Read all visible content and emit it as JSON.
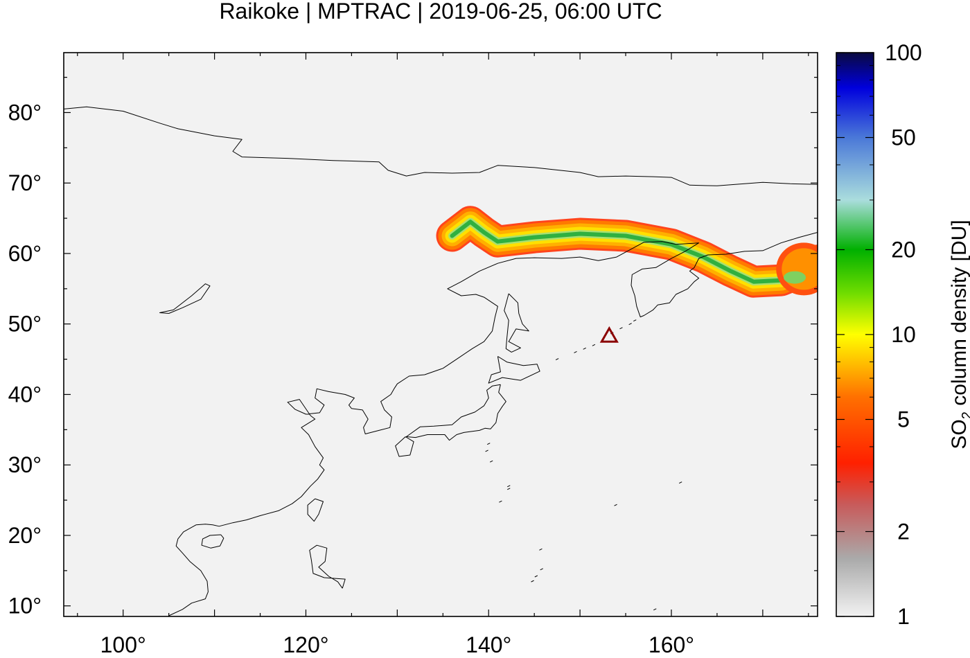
{
  "title": "Raikoke | MPTRAC | 2019-06-25, 06:00 UTC",
  "map": {
    "lon_range": [
      93.5,
      176
    ],
    "lat_range": [
      8.5,
      88.5
    ],
    "lon_ticks": [
      {
        "value": 100,
        "label": "100°"
      },
      {
        "value": 120,
        "label": "120°"
      },
      {
        "value": 140,
        "label": "140°"
      },
      {
        "value": 160,
        "label": "160°"
      }
    ],
    "lat_ticks": [
      {
        "value": 10,
        "label": "10°"
      },
      {
        "value": 20,
        "label": "20°"
      },
      {
        "value": 30,
        "label": "30°"
      },
      {
        "value": 40,
        "label": "40°"
      },
      {
        "value": 50,
        "label": "50°"
      },
      {
        "value": 60,
        "label": "60°"
      },
      {
        "value": 70,
        "label": "70°"
      },
      {
        "value": 80,
        "label": "80°"
      }
    ],
    "background_color": "#f2f2f2",
    "volcano": {
      "name": "Raikoke",
      "lon": 153.2,
      "lat": 48.3,
      "marker": "triangle-icon",
      "color": "#8b0000"
    },
    "plume_path": [
      [
        136.0,
        62.5
      ],
      [
        138.0,
        64.5
      ],
      [
        139.5,
        63.0
      ],
      [
        141.0,
        61.7
      ],
      [
        145.0,
        62.3
      ],
      [
        150.0,
        62.8
      ],
      [
        155.0,
        62.5
      ],
      [
        160.0,
        61.3
      ],
      [
        163.5,
        59.5
      ],
      [
        166.5,
        57.5
      ],
      [
        169.0,
        56.0
      ],
      [
        172.0,
        56.2
      ],
      [
        174.5,
        57.5
      ],
      [
        176.0,
        59.0
      ]
    ],
    "coastlines": [
      [
        [
          93.5,
          80.5
        ],
        [
          96,
          80.8
        ],
        [
          100,
          80.2
        ],
        [
          104,
          78.5
        ],
        [
          106,
          77.7
        ],
        [
          110,
          76.7
        ],
        [
          113,
          76.2
        ],
        [
          112,
          74.5
        ],
        [
          113,
          73.7
        ],
        [
          118,
          73.5
        ],
        [
          123,
          73.2
        ],
        [
          128,
          73.0
        ],
        [
          129,
          71.8
        ],
        [
          131,
          71.0
        ],
        [
          133,
          71.5
        ],
        [
          136,
          71.4
        ],
        [
          139,
          71.5
        ],
        [
          141,
          72.5
        ],
        [
          145,
          72.2
        ],
        [
          150,
          71.5
        ],
        [
          152,
          70.9
        ],
        [
          155,
          71.0
        ],
        [
          158,
          70.9
        ],
        [
          160,
          70.8
        ],
        [
          162,
          69.7
        ],
        [
          165,
          69.6
        ],
        [
          168,
          69.9
        ],
        [
          170,
          70.1
        ],
        [
          173,
          69.9
        ],
        [
          176,
          69.8
        ]
      ],
      [
        [
          176,
          63.0
        ],
        [
          174,
          62.3
        ],
        [
          172,
          61.5
        ],
        [
          170,
          60.4
        ],
        [
          168,
          60.3
        ],
        [
          166,
          59.9
        ],
        [
          164,
          59.8
        ],
        [
          163,
          59.3
        ],
        [
          162.5,
          58.0
        ],
        [
          162,
          57.5
        ],
        [
          163,
          56.5
        ],
        [
          162.5,
          56.0
        ],
        [
          161.8,
          55.0
        ],
        [
          160.5,
          54.2
        ],
        [
          159.8,
          53.0
        ],
        [
          158.5,
          52.7
        ],
        [
          158.0,
          52.0
        ],
        [
          157.0,
          51.2
        ],
        [
          156.6,
          51.0
        ],
        [
          156.2,
          52.5
        ],
        [
          156.0,
          54.0
        ],
        [
          155.6,
          55.5
        ],
        [
          155.7,
          57.0
        ],
        [
          156.8,
          57.8
        ],
        [
          158.3,
          58.0
        ],
        [
          160.0,
          59.3
        ],
        [
          161.5,
          60.3
        ],
        [
          163.0,
          61.5
        ],
        [
          160.5,
          61.3
        ],
        [
          159.0,
          61.7
        ],
        [
          157.0,
          61.6
        ],
        [
          154.0,
          59.5
        ],
        [
          152.0,
          59.0
        ],
        [
          150.0,
          59.5
        ],
        [
          148.0,
          59.3
        ],
        [
          145.0,
          59.4
        ],
        [
          143.0,
          59.3
        ],
        [
          141.0,
          58.6
        ],
        [
          139.0,
          57.5
        ],
        [
          137.0,
          56.0
        ],
        [
          135.5,
          55.0
        ],
        [
          137.0,
          54.0
        ],
        [
          138.6,
          54.2
        ],
        [
          139.5,
          53.8
        ],
        [
          141.0,
          52.5
        ],
        [
          140.7,
          51.0
        ],
        [
          140.4,
          49.0
        ],
        [
          139.5,
          47.5
        ],
        [
          138.2,
          46.5
        ],
        [
          136.5,
          45.0
        ],
        [
          135.0,
          43.7
        ],
        [
          133.0,
          42.8
        ],
        [
          131.3,
          42.6
        ],
        [
          130.0,
          41.5
        ],
        [
          129.7,
          40.9
        ],
        [
          129.3,
          40.0
        ],
        [
          128.2,
          39.0
        ],
        [
          128.6,
          37.8
        ],
        [
          129.4,
          36.8
        ],
        [
          129.2,
          35.3
        ],
        [
          128.0,
          34.9
        ],
        [
          126.5,
          34.4
        ],
        [
          126.3,
          35.3
        ],
        [
          126.8,
          36.5
        ],
        [
          126.2,
          37.8
        ],
        [
          125.0,
          38.0
        ],
        [
          124.7,
          38.5
        ],
        [
          125.3,
          39.5
        ],
        [
          124.3,
          40.0
        ],
        [
          122.5,
          40.4
        ],
        [
          121.2,
          40.8
        ],
        [
          121.0,
          39.5
        ],
        [
          122.0,
          38.5
        ],
        [
          121.5,
          37.4
        ],
        [
          120.0,
          37.2
        ],
        [
          118.8,
          37.9
        ],
        [
          118.0,
          38.9
        ],
        [
          119.3,
          39.3
        ],
        [
          120.5,
          37.0
        ],
        [
          121.0,
          36.5
        ],
        [
          119.5,
          35.3
        ],
        [
          120.3,
          34.3
        ],
        [
          121.0,
          32.6
        ],
        [
          121.9,
          31.0
        ],
        [
          121.5,
          30.0
        ],
        [
          122.0,
          29.3
        ],
        [
          121.3,
          28.0
        ],
        [
          120.5,
          27.0
        ],
        [
          119.5,
          25.5
        ],
        [
          118.5,
          24.5
        ],
        [
          117.0,
          23.5
        ],
        [
          115.0,
          22.8
        ],
        [
          113.5,
          22.2
        ],
        [
          112.0,
          21.8
        ],
        [
          110.5,
          21.3
        ],
        [
          109.8,
          21.5
        ],
        [
          109.0,
          21.6
        ],
        [
          108.0,
          21.5
        ],
        [
          106.6,
          20.5
        ],
        [
          106.0,
          19.5
        ],
        [
          105.8,
          18.5
        ],
        [
          106.5,
          17.5
        ],
        [
          107.3,
          16.3
        ],
        [
          108.5,
          15.0
        ],
        [
          109.2,
          13.5
        ],
        [
          109.3,
          12.0
        ],
        [
          109.0,
          11.0
        ],
        [
          107.5,
          10.4
        ],
        [
          106.5,
          9.5
        ],
        [
          105.0,
          8.6
        ]
      ],
      [
        [
          110.7,
          20.1
        ],
        [
          111.0,
          19.6
        ],
        [
          110.6,
          18.5
        ],
        [
          109.6,
          18.2
        ],
        [
          108.6,
          18.6
        ],
        [
          108.7,
          19.5
        ],
        [
          109.5,
          20.0
        ],
        [
          110.7,
          20.1
        ]
      ],
      [
        [
          121.0,
          25.2
        ],
        [
          121.9,
          24.8
        ],
        [
          121.4,
          23.0
        ],
        [
          120.9,
          22.0
        ],
        [
          120.2,
          23.0
        ],
        [
          120.2,
          24.3
        ],
        [
          121.0,
          25.2
        ]
      ],
      [
        [
          141.3,
          41.4
        ],
        [
          141.1,
          40.3
        ],
        [
          141.9,
          39.0
        ],
        [
          141.5,
          38.3
        ],
        [
          141.0,
          37.3
        ],
        [
          140.8,
          36.0
        ],
        [
          140.2,
          35.1
        ],
        [
          139.6,
          35.2
        ],
        [
          139.0,
          34.9
        ],
        [
          137.3,
          34.6
        ],
        [
          136.5,
          34.3
        ],
        [
          135.7,
          33.5
        ],
        [
          135.2,
          34.3
        ],
        [
          133.3,
          34.3
        ],
        [
          132.0,
          33.9
        ],
        [
          131.0,
          34.0
        ],
        [
          132.5,
          35.4
        ],
        [
          134.0,
          35.5
        ],
        [
          136.0,
          35.7
        ],
        [
          137.0,
          36.8
        ],
        [
          138.5,
          37.5
        ],
        [
          139.5,
          38.4
        ],
        [
          140.0,
          39.5
        ],
        [
          139.8,
          40.6
        ],
        [
          140.4,
          41.2
        ],
        [
          141.3,
          41.4
        ]
      ],
      [
        [
          141.0,
          45.4
        ],
        [
          142.0,
          44.6
        ],
        [
          143.8,
          44.1
        ],
        [
          145.3,
          44.3
        ],
        [
          145.6,
          43.3
        ],
        [
          143.5,
          42.0
        ],
        [
          141.5,
          42.4
        ],
        [
          140.0,
          41.6
        ],
        [
          140.3,
          42.8
        ],
        [
          141.3,
          43.2
        ],
        [
          141.0,
          45.4
        ]
      ],
      [
        [
          130.9,
          34.0
        ],
        [
          131.8,
          33.3
        ],
        [
          131.4,
          31.4
        ],
        [
          130.2,
          31.2
        ],
        [
          129.8,
          32.7
        ],
        [
          130.9,
          34.0
        ]
      ],
      [
        [
          142.2,
          54.3
        ],
        [
          143.2,
          53.0
        ],
        [
          143.3,
          51.5
        ],
        [
          143.7,
          50.0
        ],
        [
          144.4,
          49.0
        ],
        [
          143.0,
          49.3
        ],
        [
          142.2,
          47.5
        ],
        [
          143.5,
          46.6
        ],
        [
          142.5,
          46.0
        ],
        [
          141.9,
          46.5
        ],
        [
          142.0,
          48.0
        ],
        [
          142.2,
          50.5
        ],
        [
          141.7,
          51.9
        ],
        [
          142.2,
          54.3
        ]
      ],
      [
        [
          105.0,
          51.5
        ],
        [
          106.5,
          52.3
        ],
        [
          108.5,
          53.5
        ],
        [
          109.5,
          55.4
        ],
        [
          109.0,
          55.7
        ],
        [
          107.5,
          54.0
        ],
        [
          105.5,
          52.0
        ],
        [
          104.0,
          51.6
        ],
        [
          105.0,
          51.5
        ]
      ],
      [
        [
          124.0,
          12.5
        ],
        [
          124.3,
          13.8
        ],
        [
          122.0,
          14.0
        ],
        [
          120.8,
          14.6
        ],
        [
          120.6,
          16.5
        ],
        [
          120.4,
          17.9
        ],
        [
          121.2,
          18.6
        ],
        [
          122.3,
          18.2
        ],
        [
          122.1,
          16.3
        ],
        [
          121.4,
          15.5
        ],
        [
          122.5,
          14.2
        ],
        [
          123.5,
          13.4
        ],
        [
          124.0,
          12.5
        ]
      ]
    ],
    "island_points": [
      [
        147.5,
        45.0
      ],
      [
        149.5,
        46.0
      ],
      [
        150.5,
        46.5
      ],
      [
        151.5,
        47.0
      ],
      [
        152.5,
        47.8
      ],
      [
        153.5,
        48.7
      ],
      [
        154.5,
        49.4
      ],
      [
        155.5,
        50.0
      ],
      [
        156.0,
        50.5
      ],
      [
        140.0,
        33.0
      ],
      [
        139.8,
        32.0
      ],
      [
        140.3,
        30.5
      ],
      [
        142.2,
        27.0
      ],
      [
        142.2,
        26.6
      ],
      [
        141.3,
        24.8
      ],
      [
        153.9,
        24.3
      ],
      [
        145.8,
        15.2
      ],
      [
        145.7,
        18.0
      ],
      [
        145.2,
        14.2
      ],
      [
        144.8,
        13.5
      ],
      [
        152.0,
        7.5
      ],
      [
        158.2,
        9.5
      ],
      [
        161.0,
        27.5
      ]
    ]
  },
  "colorbar": {
    "label": "SO₂ column density [DU]",
    "label_main": "SO",
    "label_sub": "2",
    "label_rest": " column density [DU]",
    "scale": "log",
    "range": [
      1,
      100
    ],
    "ticks": [
      {
        "value": 1,
        "label": "1"
      },
      {
        "value": 2,
        "label": "2"
      },
      {
        "value": 5,
        "label": "5"
      },
      {
        "value": 10,
        "label": "10"
      },
      {
        "value": 20,
        "label": "20"
      },
      {
        "value": 50,
        "label": "50"
      },
      {
        "value": 100,
        "label": "100"
      }
    ],
    "stops": [
      {
        "value": 1,
        "color": "#f2f2f2"
      },
      {
        "value": 1.6,
        "color": "#aaaaaa"
      },
      {
        "value": 2.5,
        "color": "#c85a5a"
      },
      {
        "value": 3.5,
        "color": "#ff2000"
      },
      {
        "value": 6,
        "color": "#ff7000"
      },
      {
        "value": 10,
        "color": "#ffff00"
      },
      {
        "value": 14,
        "color": "#70dd00"
      },
      {
        "value": 20,
        "color": "#00b000"
      },
      {
        "value": 30,
        "color": "#aadddd"
      },
      {
        "value": 50,
        "color": "#4a78d8"
      },
      {
        "value": 75,
        "color": "#0000dd"
      },
      {
        "value": 100,
        "color": "#0a0a40"
      }
    ]
  }
}
